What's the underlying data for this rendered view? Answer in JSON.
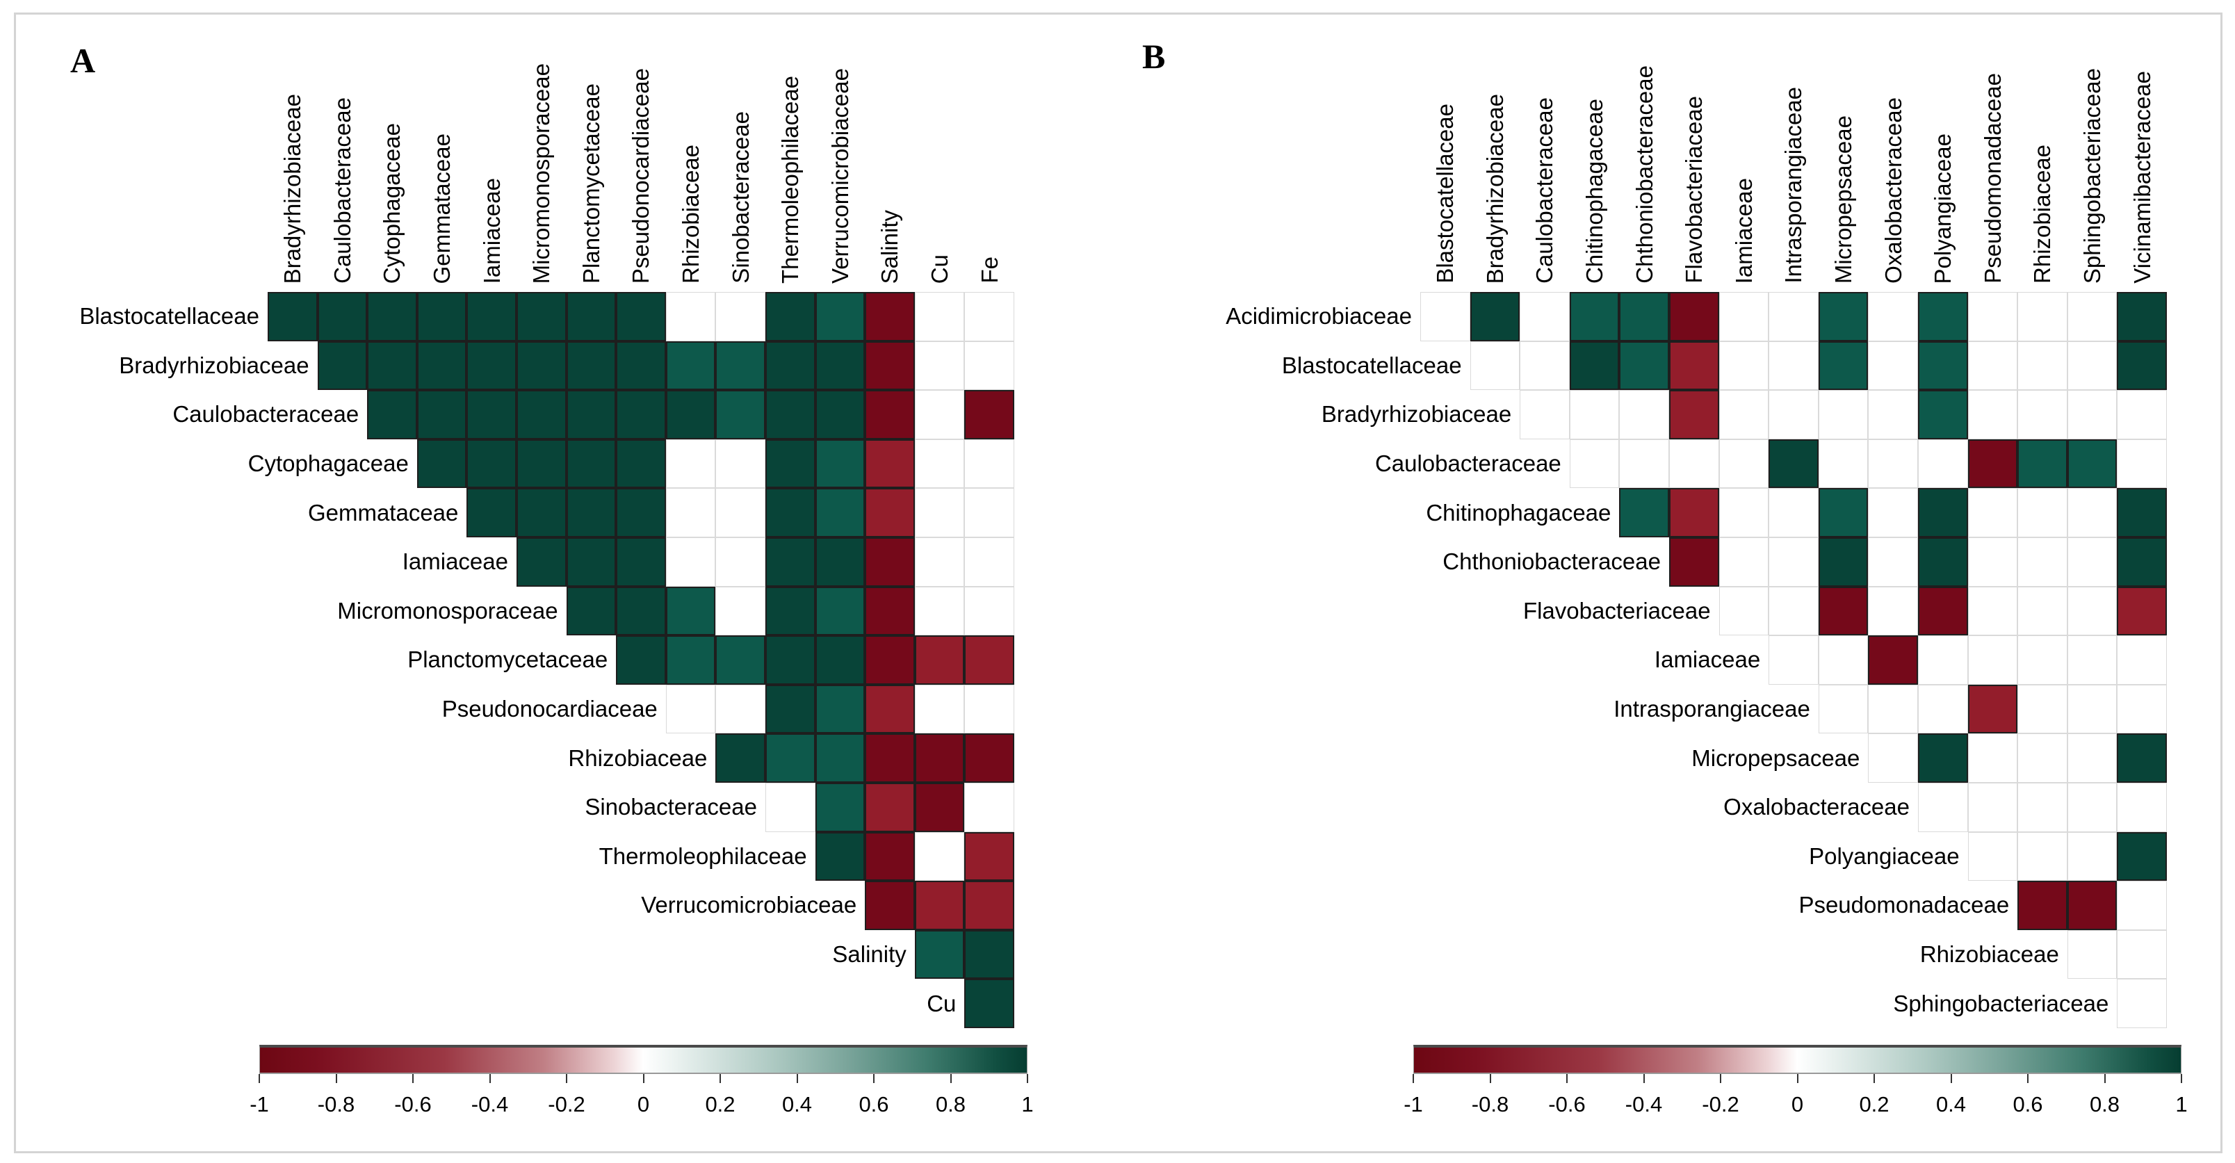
{
  "figure": {
    "panel_labels": [
      "A",
      "B"
    ],
    "background": "#ffffff",
    "border_color": "#d4d4d4"
  },
  "colorbar": {
    "min": -1,
    "max": 1,
    "tick_labels": [
      "-1",
      "-0.8",
      "-0.6",
      "-0.4",
      "-0.2",
      "0",
      "0.2",
      "0.4",
      "0.6",
      "0.8",
      "1"
    ],
    "negative_color": "#6d0713",
    "mid_color": "#ffffff",
    "positive_color": "#063d31"
  },
  "chart_data": [
    {
      "type": "heatmap",
      "panel": "A",
      "description": "Upper-triangle correlation matrix of bacterial families vs environment (Salinity, Cu, Fe); only significant correlations shown as colored squares, green positive, red negative",
      "columns": [
        "Bradyrhizobiaceae",
        "Caulobacteraceae",
        "Cytophagaceae",
        "Gemmataceae",
        "Iamiaceae",
        "Micromonosporaceae",
        "Planctomycetaceae",
        "Pseudonocardiaceae",
        "Rhizobiaceae",
        "Sinobacteraceae",
        "Thermoleophilaceae",
        "Verrucomicrobiaceae",
        "Salinity",
        "Cu",
        "Fe"
      ],
      "rows": [
        "Blastocatellaceae",
        "Bradyrhizobiaceae",
        "Caulobacteraceae",
        "Cytophagaceae",
        "Gemmataceae",
        "Iamiaceae",
        "Micromonosporaceae",
        "Planctomycetaceae",
        "Pseudonocardiaceae",
        "Rhizobiaceae",
        "Sinobacteraceae",
        "Thermoleophilaceae",
        "Verrucomicrobiaceae",
        "Salinity",
        "Cu"
      ],
      "value_range": [
        -1,
        1
      ],
      "cells": [
        [
          1,
          1,
          0.95
        ],
        [
          1,
          2,
          0.95
        ],
        [
          1,
          3,
          0.95
        ],
        [
          1,
          4,
          0.95
        ],
        [
          1,
          5,
          0.95
        ],
        [
          1,
          6,
          0.95
        ],
        [
          1,
          7,
          0.95
        ],
        [
          1,
          8,
          0.95
        ],
        [
          1,
          11,
          0.95
        ],
        [
          1,
          12,
          0.8
        ],
        [
          1,
          13,
          -0.95
        ],
        [
          2,
          2,
          0.95
        ],
        [
          2,
          3,
          0.95
        ],
        [
          2,
          4,
          0.95
        ],
        [
          2,
          5,
          0.95
        ],
        [
          2,
          6,
          0.95
        ],
        [
          2,
          7,
          0.95
        ],
        [
          2,
          8,
          0.95
        ],
        [
          2,
          9,
          0.8
        ],
        [
          2,
          10,
          0.8
        ],
        [
          2,
          11,
          0.95
        ],
        [
          2,
          12,
          0.95
        ],
        [
          2,
          13,
          -0.95
        ],
        [
          3,
          3,
          0.95
        ],
        [
          3,
          4,
          0.95
        ],
        [
          3,
          5,
          0.95
        ],
        [
          3,
          6,
          0.95
        ],
        [
          3,
          7,
          0.95
        ],
        [
          3,
          8,
          0.95
        ],
        [
          3,
          9,
          0.95
        ],
        [
          3,
          10,
          0.8
        ],
        [
          3,
          11,
          0.95
        ],
        [
          3,
          12,
          0.95
        ],
        [
          3,
          13,
          -0.95
        ],
        [
          3,
          15,
          -0.95
        ],
        [
          4,
          4,
          0.95
        ],
        [
          4,
          5,
          0.95
        ],
        [
          4,
          6,
          0.95
        ],
        [
          4,
          7,
          0.95
        ],
        [
          4,
          8,
          0.95
        ],
        [
          4,
          11,
          0.95
        ],
        [
          4,
          12,
          0.8
        ],
        [
          4,
          13,
          -0.8
        ],
        [
          5,
          5,
          0.95
        ],
        [
          5,
          6,
          0.95
        ],
        [
          5,
          7,
          0.95
        ],
        [
          5,
          8,
          0.95
        ],
        [
          5,
          11,
          0.95
        ],
        [
          5,
          12,
          0.8
        ],
        [
          5,
          13,
          -0.8
        ],
        [
          6,
          6,
          0.95
        ],
        [
          6,
          7,
          0.95
        ],
        [
          6,
          8,
          0.95
        ],
        [
          6,
          11,
          0.95
        ],
        [
          6,
          12,
          0.95
        ],
        [
          6,
          13,
          -0.95
        ],
        [
          7,
          7,
          0.95
        ],
        [
          7,
          8,
          0.95
        ],
        [
          7,
          9,
          0.8
        ],
        [
          7,
          11,
          0.95
        ],
        [
          7,
          12,
          0.8
        ],
        [
          7,
          13,
          -0.95
        ],
        [
          8,
          8,
          0.95
        ],
        [
          8,
          9,
          0.8
        ],
        [
          8,
          10,
          0.8
        ],
        [
          8,
          11,
          0.95
        ],
        [
          8,
          12,
          0.95
        ],
        [
          8,
          13,
          -0.95
        ],
        [
          8,
          14,
          -0.8
        ],
        [
          8,
          15,
          -0.8
        ],
        [
          9,
          11,
          0.95
        ],
        [
          9,
          12,
          0.8
        ],
        [
          9,
          13,
          -0.8
        ],
        [
          10,
          10,
          0.95
        ],
        [
          10,
          11,
          0.8
        ],
        [
          10,
          12,
          0.8
        ],
        [
          10,
          13,
          -0.95
        ],
        [
          10,
          14,
          -0.95
        ],
        [
          10,
          15,
          -0.95
        ],
        [
          11,
          12,
          0.8
        ],
        [
          11,
          13,
          -0.8
        ],
        [
          11,
          14,
          -0.95
        ],
        [
          12,
          12,
          0.95
        ],
        [
          12,
          13,
          -0.95
        ],
        [
          12,
          15,
          -0.8
        ],
        [
          13,
          13,
          -0.95
        ],
        [
          13,
          14,
          -0.8
        ],
        [
          13,
          15,
          -0.8
        ],
        [
          14,
          14,
          0.8
        ],
        [
          14,
          15,
          0.95
        ],
        [
          15,
          15,
          0.95
        ]
      ]
    },
    {
      "type": "heatmap",
      "panel": "B",
      "description": "Upper-triangle correlation matrix of bacterial families; only significant correlations shown as colored squares, green positive, red negative",
      "columns": [
        "Blastocatellaceae",
        "Bradyrhizobiaceae",
        "Caulobacteraceae",
        "Chitinophagaceae",
        "Chthoniobacteraceae",
        "Flavobacteriaceae",
        "Iamiaceae",
        "Intrasporangiaceae",
        "Micropepsaceae",
        "Oxalobacteraceae",
        "Polyangiaceae",
        "Pseudomonadaceae",
        "Rhizobiaceae",
        "Sphingobacteriaceae",
        "Vicinamibacteraceae"
      ],
      "rows": [
        "Acidimicrobiaceae",
        "Blastocatellaceae",
        "Bradyrhizobiaceae",
        "Caulobacteraceae",
        "Chitinophagaceae",
        "Chthoniobacteraceae",
        "Flavobacteriaceae",
        "Iamiaceae",
        "Intrasporangiaceae",
        "Micropepsaceae",
        "Oxalobacteraceae",
        "Polyangiaceae",
        "Pseudomonadaceae",
        "Rhizobiaceae",
        "Sphingobacteriaceae"
      ],
      "value_range": [
        -1,
        1
      ],
      "cells": [
        [
          1,
          2,
          0.95
        ],
        [
          1,
          4,
          0.8
        ],
        [
          1,
          5,
          0.8
        ],
        [
          1,
          6,
          -0.95
        ],
        [
          1,
          9,
          0.8
        ],
        [
          1,
          11,
          0.8
        ],
        [
          1,
          15,
          0.95
        ],
        [
          2,
          4,
          0.95
        ],
        [
          2,
          5,
          0.8
        ],
        [
          2,
          6,
          -0.8
        ],
        [
          2,
          9,
          0.8
        ],
        [
          2,
          11,
          0.8
        ],
        [
          2,
          15,
          0.95
        ],
        [
          3,
          6,
          -0.8
        ],
        [
          3,
          11,
          0.8
        ],
        [
          4,
          8,
          0.95
        ],
        [
          4,
          12,
          -0.95
        ],
        [
          4,
          13,
          0.8
        ],
        [
          4,
          14,
          0.8
        ],
        [
          5,
          5,
          0.8
        ],
        [
          5,
          6,
          -0.8
        ],
        [
          5,
          9,
          0.8
        ],
        [
          5,
          11,
          0.95
        ],
        [
          5,
          15,
          0.95
        ],
        [
          6,
          6,
          -0.95
        ],
        [
          6,
          9,
          0.95
        ],
        [
          6,
          11,
          0.95
        ],
        [
          6,
          15,
          0.95
        ],
        [
          7,
          9,
          -0.95
        ],
        [
          7,
          11,
          -0.95
        ],
        [
          7,
          15,
          -0.8
        ],
        [
          8,
          10,
          -0.95
        ],
        [
          9,
          12,
          -0.8
        ],
        [
          10,
          11,
          0.95
        ],
        [
          10,
          15,
          0.95
        ],
        [
          12,
          15,
          0.95
        ],
        [
          13,
          13,
          -0.95
        ],
        [
          13,
          14,
          -0.95
        ]
      ]
    }
  ]
}
